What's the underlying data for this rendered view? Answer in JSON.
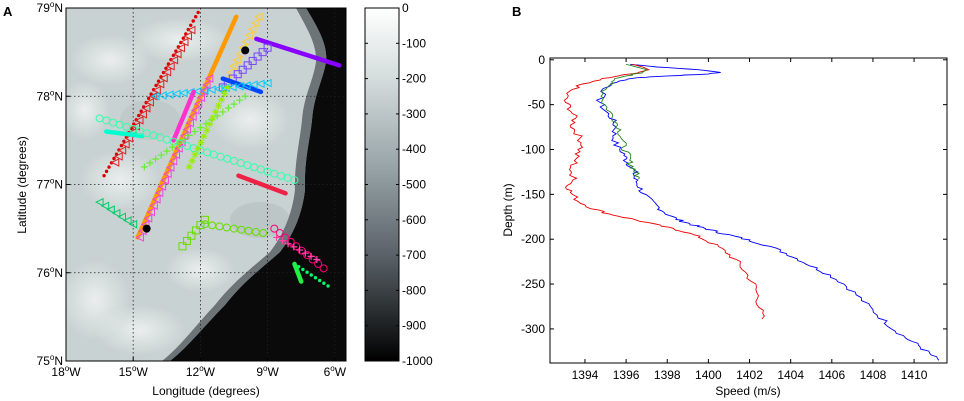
{
  "panels": {
    "a": {
      "letter": "A",
      "xlabel": "Longitude (degrees)",
      "ylabel": "Latitude (degrees)",
      "xticks": [
        {
          "value": -18,
          "num": "18",
          "dir": "W"
        },
        {
          "value": -15,
          "num": "15",
          "dir": "W"
        },
        {
          "value": -12,
          "num": "12",
          "dir": "W"
        },
        {
          "value": -9,
          "num": "9",
          "dir": "W"
        },
        {
          "value": -6,
          "num": "6",
          "dir": "W"
        }
      ],
      "yticks": [
        {
          "value": 79,
          "num": "79",
          "dir": "N"
        },
        {
          "value": 78,
          "num": "78",
          "dir": "N"
        },
        {
          "value": 77,
          "num": "77",
          "dir": "N"
        },
        {
          "value": 76,
          "num": "76",
          "dir": "N"
        },
        {
          "value": 75,
          "num": "75",
          "dir": "N"
        }
      ],
      "colorbar": {
        "ticks": [
          "0",
          "-100",
          "-200",
          "-300",
          "-400",
          "-500",
          "-600",
          "-700",
          "-800",
          "-900",
          "-1000"
        ],
        "range": [
          -1000,
          0
        ]
      }
    },
    "b": {
      "letter": "B",
      "xlabel": "Speed (m/s)",
      "ylabel": "Depth (m)",
      "xticks": [
        "1394",
        "1396",
        "1398",
        "1400",
        "1402",
        "1404",
        "1406",
        "1408",
        "1410"
      ],
      "yticks": [
        "0",
        "-50",
        "-100",
        "-150",
        "-200",
        "-250",
        "-300"
      ]
    }
  },
  "chart_data": [
    {
      "type": "scatter",
      "panel": "A",
      "xlabel": "Longitude (degrees)",
      "ylabel": "Latitude (degrees)",
      "xlim": [
        -18,
        -5.5
      ],
      "ylim": [
        75,
        79
      ],
      "grid": true,
      "background": "bathymetry (grayscale, depth 0 to -1000 m)",
      "stations": [
        {
          "lon": -10.0,
          "lat": 78.52,
          "color": "#000000"
        },
        {
          "lon": -14.4,
          "lat": 76.5,
          "color": "#000000"
        }
      ],
      "series": [
        {
          "color": "#dd0000",
          "marker": "dot",
          "points": [
            [
              -16.3,
              77.1
            ],
            [
              -12.1,
              78.95
            ]
          ]
        },
        {
          "color": "#dd2222",
          "marker": "triangle",
          "points": [
            [
              -15.8,
              77.25
            ],
            [
              -12.4,
              78.75
            ]
          ]
        },
        {
          "color": "#ff9900",
          "marker": "line",
          "points": [
            [
              -14.8,
              76.4
            ],
            [
              -10.4,
              78.9
            ]
          ]
        },
        {
          "color": "#ffcc33",
          "marker": "triangle",
          "points": [
            [
              -10.8,
              78.2
            ],
            [
              -9.4,
              78.9
            ]
          ]
        },
        {
          "color": "#8800ff",
          "marker": "line",
          "points": [
            [
              -9.5,
              78.65
            ],
            [
              -5.8,
              78.35
            ]
          ]
        },
        {
          "color": "#7744ff",
          "marker": "square",
          "points": [
            [
              -11.0,
              78.1
            ],
            [
              -9.0,
              78.55
            ]
          ]
        },
        {
          "color": "#0044ff",
          "marker": "line",
          "points": [
            [
              -11.0,
              78.2
            ],
            [
              -9.3,
              78.05
            ]
          ]
        },
        {
          "color": "#00ccff",
          "marker": "triangle",
          "points": [
            [
              -14.0,
              78.0
            ],
            [
              -9.0,
              78.15
            ]
          ]
        },
        {
          "color": "#ff33cc",
          "marker": "line",
          "points": [
            [
              -13.2,
              77.5
            ],
            [
              -12.3,
              78.05
            ]
          ]
        },
        {
          "color": "#ee44dd",
          "marker": "triangle",
          "points": [
            [
              -14.7,
              76.4
            ],
            [
              -11.6,
              78.2
            ]
          ]
        },
        {
          "color": "#00ffcc",
          "marker": "line",
          "points": [
            [
              -16.2,
              77.6
            ],
            [
              -14.6,
              77.55
            ]
          ]
        },
        {
          "color": "#33ffaa",
          "marker": "circle",
          "points": [
            [
              -16.5,
              77.75
            ],
            [
              -7.8,
              77.05
            ]
          ]
        },
        {
          "color": "#66ee33",
          "marker": "cross",
          "points": [
            [
              -14.5,
              77.2
            ],
            [
              -10.0,
              78.0
            ]
          ]
        },
        {
          "color": "#99ee00",
          "marker": "star",
          "points": [
            [
              -12.5,
              77.2
            ],
            [
              -10.8,
              78.1
            ]
          ]
        },
        {
          "color": "#ee2244",
          "marker": "line",
          "points": [
            [
              -10.3,
              77.1
            ],
            [
              -8.2,
              76.9
            ]
          ]
        },
        {
          "color": "#00cc66",
          "marker": "triangle",
          "points": [
            [
              -16.5,
              76.8
            ],
            [
              -15.0,
              76.55
            ]
          ]
        },
        {
          "color": "#66dd00",
          "marker": "circle",
          "points": [
            [
              -11.8,
              76.55
            ],
            [
              -9.2,
              76.45
            ]
          ]
        },
        {
          "color": "#66dd00",
          "marker": "square",
          "points": [
            [
              -12.8,
              76.3
            ],
            [
              -11.8,
              76.6
            ]
          ]
        },
        {
          "color": "#ff0077",
          "marker": "circle",
          "points": [
            [
              -8.7,
              76.5
            ],
            [
              -6.5,
              76.05
            ]
          ]
        },
        {
          "color": "#ff44aa",
          "marker": "cross",
          "points": [
            [
              -8.6,
              76.4
            ],
            [
              -6.8,
              76.15
            ]
          ]
        },
        {
          "color": "#00ff66",
          "marker": "dot",
          "points": [
            [
              -7.8,
              76.1
            ],
            [
              -6.3,
              75.85
            ]
          ]
        },
        {
          "color": "#22ee44",
          "marker": "line",
          "points": [
            [
              -7.8,
              76.1
            ],
            [
              -7.5,
              75.9
            ]
          ]
        }
      ]
    },
    {
      "type": "line",
      "panel": "B",
      "xlabel": "Speed (m/s)",
      "ylabel": "Depth (m)",
      "xlim": [
        1392.3,
        1411.6
      ],
      "ylim": [
        -338,
        2
      ],
      "grid": false,
      "series": [
        {
          "color": "#0000ff",
          "points": [
            [
              1396.2,
              -5
            ],
            [
              1397.5,
              -8
            ],
            [
              1399.5,
              -11
            ],
            [
              1400.6,
              -14
            ],
            [
              1400.0,
              -16
            ],
            [
              1398.0,
              -18
            ],
            [
              1396.5,
              -20
            ],
            [
              1395.5,
              -25
            ],
            [
              1395.0,
              -32
            ],
            [
              1394.7,
              -45
            ],
            [
              1394.9,
              -55
            ],
            [
              1395.3,
              -65
            ],
            [
              1395.5,
              -75
            ],
            [
              1395.4,
              -85
            ],
            [
              1395.5,
              -95
            ],
            [
              1395.9,
              -105
            ],
            [
              1396.0,
              -112
            ],
            [
              1396.2,
              -118
            ],
            [
              1396.4,
              -125
            ],
            [
              1396.4,
              -132
            ],
            [
              1396.6,
              -140
            ],
            [
              1396.8,
              -148
            ],
            [
              1397.2,
              -158
            ],
            [
              1397.6,
              -165
            ],
            [
              1398.0,
              -172
            ],
            [
              1398.5,
              -178
            ],
            [
              1399.0,
              -182
            ],
            [
              1399.5,
              -186
            ],
            [
              1400.0,
              -189
            ],
            [
              1400.6,
              -193
            ],
            [
              1401.3,
              -197
            ],
            [
              1402.1,
              -202
            ],
            [
              1403.0,
              -208
            ],
            [
              1403.8,
              -216
            ],
            [
              1404.5,
              -224
            ],
            [
              1405.2,
              -232
            ],
            [
              1405.9,
              -240
            ],
            [
              1406.6,
              -250
            ],
            [
              1407.2,
              -262
            ],
            [
              1407.8,
              -275
            ],
            [
              1408.4,
              -288
            ],
            [
              1409.0,
              -300
            ],
            [
              1409.6,
              -310
            ],
            [
              1410.2,
              -318
            ],
            [
              1410.7,
              -327
            ],
            [
              1411.2,
              -335
            ]
          ]
        },
        {
          "color": "#ee0000",
          "points": [
            [
              1396.3,
              -5
            ],
            [
              1396.8,
              -8
            ],
            [
              1397.1,
              -11
            ],
            [
              1396.6,
              -14
            ],
            [
              1395.8,
              -17
            ],
            [
              1394.8,
              -21
            ],
            [
              1393.9,
              -27
            ],
            [
              1393.2,
              -35
            ],
            [
              1393.0,
              -45
            ],
            [
              1393.3,
              -55
            ],
            [
              1393.5,
              -65
            ],
            [
              1393.4,
              -75
            ],
            [
              1393.7,
              -85
            ],
            [
              1393.9,
              -95
            ],
            [
              1393.6,
              -105
            ],
            [
              1393.5,
              -115
            ],
            [
              1393.2,
              -125
            ],
            [
              1393.6,
              -132
            ],
            [
              1393.2,
              -140
            ],
            [
              1393.3,
              -148
            ],
            [
              1393.7,
              -158
            ],
            [
              1394.4,
              -166
            ],
            [
              1395.2,
              -172
            ],
            [
              1396.2,
              -177
            ],
            [
              1397.3,
              -183
            ],
            [
              1398.2,
              -188
            ],
            [
              1398.9,
              -192
            ],
            [
              1399.6,
              -198
            ],
            [
              1400.3,
              -206
            ],
            [
              1400.9,
              -215
            ],
            [
              1401.4,
              -225
            ],
            [
              1401.8,
              -237
            ],
            [
              1402.2,
              -250
            ],
            [
              1402.4,
              -263
            ],
            [
              1402.5,
              -276
            ],
            [
              1402.6,
              -289
            ]
          ]
        },
        {
          "color": "#228822",
          "points": [
            [
              1396.0,
              -5
            ],
            [
              1396.5,
              -8
            ],
            [
              1397.0,
              -11
            ],
            [
              1396.8,
              -14
            ],
            [
              1396.2,
              -17
            ],
            [
              1395.6,
              -21
            ],
            [
              1395.1,
              -28
            ],
            [
              1394.9,
              -38
            ],
            [
              1394.9,
              -48
            ],
            [
              1395.2,
              -58
            ],
            [
              1395.5,
              -68
            ],
            [
              1395.7,
              -78
            ],
            [
              1395.8,
              -88
            ],
            [
              1395.9,
              -98
            ],
            [
              1396.1,
              -108
            ],
            [
              1396.2,
              -116
            ],
            [
              1396.4,
              -122
            ],
            [
              1396.5,
              -128
            ],
            [
              1396.6,
              -133
            ]
          ]
        }
      ]
    }
  ]
}
